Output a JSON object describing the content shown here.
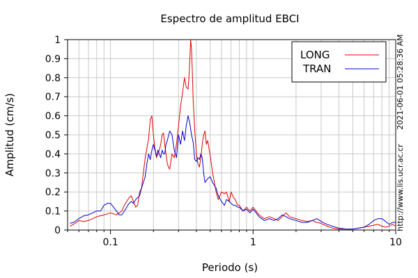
{
  "chart_data": {
    "type": "line",
    "title": "Espectro de amplitud EBCI",
    "xlabel": "Periodo (s)",
    "ylabel": "Amplitud (cm/s)",
    "x_scale": "log",
    "xlim": [
      0.05,
      10
    ],
    "ylim": [
      0,
      1
    ],
    "grid": true,
    "legend_position": "top-right",
    "x_tick_labels": [
      "0.1",
      "1",
      "10"
    ],
    "y_tick_labels": [
      "0",
      "0.1",
      "0.2",
      "0.3",
      "0.4",
      "0.5",
      "0.6",
      "0.7",
      "0.8",
      "0.9",
      "1"
    ],
    "side_text": [
      "2021-06-01 05:28:36 AM",
      "http://www.lis.ucr.ac.cr"
    ],
    "series": [
      {
        "name": "LONG",
        "color": "#dd0000",
        "x": [
          0.052,
          0.055,
          0.06,
          0.065,
          0.07,
          0.075,
          0.08,
          0.085,
          0.09,
          0.095,
          0.1,
          0.105,
          0.11,
          0.115,
          0.12,
          0.125,
          0.13,
          0.135,
          0.14,
          0.145,
          0.15,
          0.155,
          0.16,
          0.165,
          0.17,
          0.175,
          0.18,
          0.185,
          0.19,
          0.195,
          0.2,
          0.205,
          0.21,
          0.215,
          0.22,
          0.225,
          0.23,
          0.235,
          0.24,
          0.245,
          0.25,
          0.255,
          0.26,
          0.27,
          0.28,
          0.29,
          0.3,
          0.31,
          0.32,
          0.33,
          0.34,
          0.35,
          0.355,
          0.36,
          0.365,
          0.37,
          0.375,
          0.38,
          0.39,
          0.4,
          0.41,
          0.42,
          0.43,
          0.44,
          0.45,
          0.46,
          0.47,
          0.48,
          0.5,
          0.52,
          0.55,
          0.57,
          0.6,
          0.63,
          0.65,
          0.68,
          0.7,
          0.73,
          0.75,
          0.78,
          0.8,
          0.85,
          0.9,
          0.95,
          1.0,
          1.05,
          1.1,
          1.2,
          1.3,
          1.4,
          1.5,
          1.6,
          1.7,
          1.8,
          2.0,
          2.2,
          2.4,
          2.6,
          2.8,
          3.0,
          3.3,
          3.6,
          4.0,
          4.5,
          5.0,
          5.5,
          6.0,
          6.5,
          7.0,
          7.5,
          8.0,
          8.5,
          9.0,
          9.5,
          10.0
        ],
        "y": [
          0.02,
          0.03,
          0.05,
          0.045,
          0.05,
          0.06,
          0.07,
          0.075,
          0.08,
          0.085,
          0.09,
          0.085,
          0.08,
          0.09,
          0.1,
          0.13,
          0.15,
          0.17,
          0.18,
          0.15,
          0.12,
          0.13,
          0.2,
          0.22,
          0.3,
          0.38,
          0.43,
          0.48,
          0.58,
          0.6,
          0.5,
          0.43,
          0.38,
          0.4,
          0.42,
          0.45,
          0.5,
          0.51,
          0.45,
          0.4,
          0.35,
          0.33,
          0.32,
          0.4,
          0.38,
          0.45,
          0.55,
          0.65,
          0.72,
          0.8,
          0.75,
          0.74,
          0.8,
          0.9,
          1.0,
          0.95,
          0.83,
          0.68,
          0.52,
          0.4,
          0.35,
          0.33,
          0.38,
          0.45,
          0.5,
          0.52,
          0.45,
          0.47,
          0.39,
          0.3,
          0.2,
          0.16,
          0.2,
          0.19,
          0.2,
          0.15,
          0.2,
          0.17,
          0.16,
          0.13,
          0.13,
          0.1,
          0.12,
          0.1,
          0.12,
          0.1,
          0.08,
          0.06,
          0.07,
          0.06,
          0.05,
          0.07,
          0.09,
          0.07,
          0.06,
          0.05,
          0.045,
          0.05,
          0.04,
          0.035,
          0.02,
          0.01,
          0.005,
          0.005,
          0.005,
          0.01,
          0.015,
          0.02,
          0.025,
          0.03,
          0.02,
          0.015,
          0.02,
          0.03,
          0.02
        ]
      },
      {
        "name": "TRAN",
        "color": "#0000cc",
        "x": [
          0.052,
          0.055,
          0.06,
          0.065,
          0.07,
          0.075,
          0.08,
          0.085,
          0.09,
          0.095,
          0.1,
          0.105,
          0.11,
          0.115,
          0.12,
          0.125,
          0.13,
          0.135,
          0.14,
          0.145,
          0.15,
          0.155,
          0.16,
          0.165,
          0.17,
          0.175,
          0.18,
          0.185,
          0.19,
          0.195,
          0.2,
          0.205,
          0.21,
          0.215,
          0.22,
          0.225,
          0.23,
          0.235,
          0.24,
          0.245,
          0.25,
          0.26,
          0.27,
          0.28,
          0.29,
          0.3,
          0.31,
          0.32,
          0.33,
          0.34,
          0.35,
          0.36,
          0.37,
          0.38,
          0.39,
          0.4,
          0.41,
          0.42,
          0.43,
          0.44,
          0.45,
          0.46,
          0.47,
          0.48,
          0.5,
          0.52,
          0.55,
          0.57,
          0.6,
          0.63,
          0.65,
          0.68,
          0.7,
          0.73,
          0.75,
          0.78,
          0.8,
          0.85,
          0.9,
          0.95,
          1.0,
          1.05,
          1.1,
          1.2,
          1.3,
          1.4,
          1.5,
          1.6,
          1.7,
          1.8,
          2.0,
          2.2,
          2.4,
          2.6,
          2.8,
          3.0,
          3.3,
          3.6,
          4.0,
          4.5,
          5.0,
          5.5,
          6.0,
          6.5,
          7.0,
          7.5,
          8.0,
          8.5,
          9.0,
          9.5,
          10.0
        ],
        "y": [
          0.035,
          0.04,
          0.06,
          0.075,
          0.08,
          0.09,
          0.1,
          0.1,
          0.13,
          0.14,
          0.14,
          0.12,
          0.1,
          0.08,
          0.08,
          0.1,
          0.12,
          0.14,
          0.15,
          0.14,
          0.16,
          0.17,
          0.18,
          0.22,
          0.25,
          0.28,
          0.35,
          0.4,
          0.37,
          0.42,
          0.45,
          0.42,
          0.39,
          0.42,
          0.4,
          0.38,
          0.42,
          0.4,
          0.4,
          0.45,
          0.47,
          0.52,
          0.5,
          0.42,
          0.38,
          0.5,
          0.45,
          0.52,
          0.47,
          0.55,
          0.6,
          0.56,
          0.5,
          0.46,
          0.37,
          0.36,
          0.38,
          0.37,
          0.4,
          0.38,
          0.3,
          0.25,
          0.26,
          0.27,
          0.28,
          0.25,
          0.22,
          0.18,
          0.15,
          0.13,
          0.16,
          0.15,
          0.14,
          0.13,
          0.13,
          0.12,
          0.12,
          0.1,
          0.11,
          0.09,
          0.11,
          0.09,
          0.07,
          0.05,
          0.06,
          0.05,
          0.06,
          0.08,
          0.07,
          0.06,
          0.05,
          0.04,
          0.04,
          0.05,
          0.06,
          0.045,
          0.03,
          0.02,
          0.01,
          0.005,
          0.005,
          0.01,
          0.015,
          0.03,
          0.05,
          0.06,
          0.06,
          0.045,
          0.03,
          0.04,
          0.04
        ]
      }
    ]
  }
}
